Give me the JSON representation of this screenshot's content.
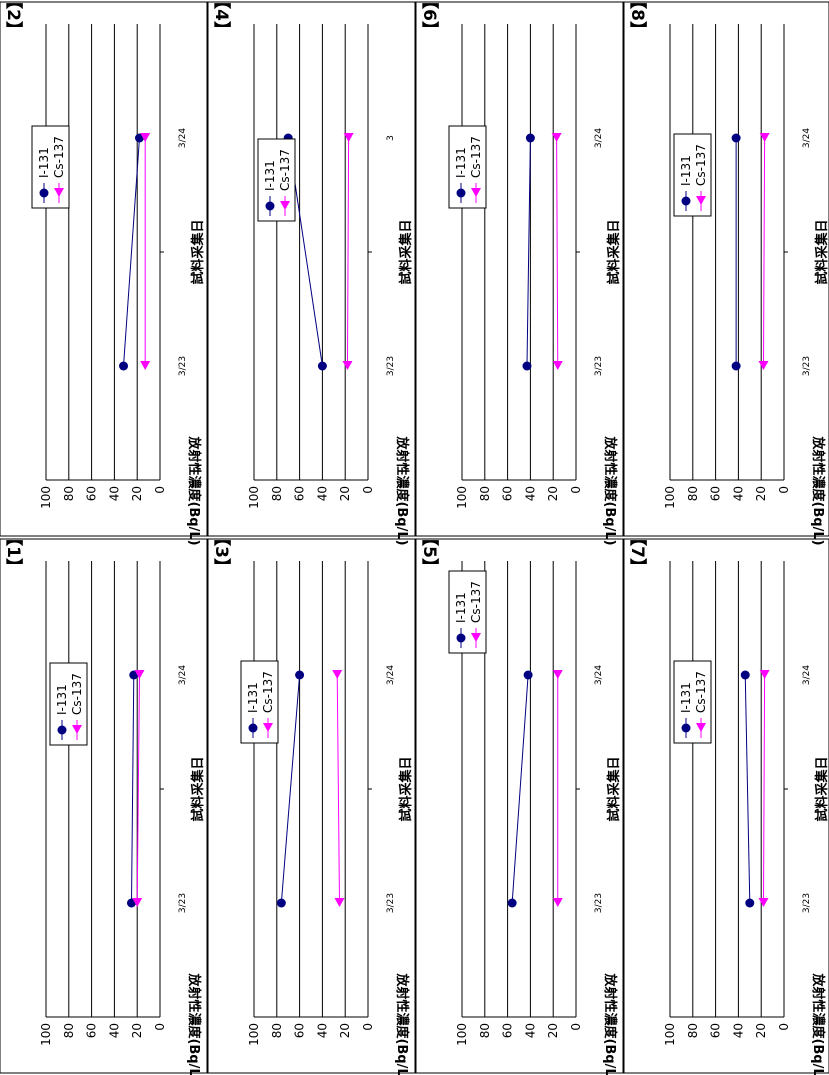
{
  "axis_labels": {
    "ylabel": "放射性濃度(Bq/L)",
    "xlabel": "試料采集日"
  },
  "series_names": [
    "I-131",
    "Cs-137"
  ],
  "colors": {
    "i131": "#000080",
    "cs137": "#ff00ff",
    "grid": "#000000"
  },
  "chart_data": [
    {
      "type": "line",
      "panel": "【1】",
      "categories": [
        "3/23",
        "3/24"
      ],
      "ylabel": "放射性濃度(Bq/L)",
      "xlabel": "試料采集日",
      "ylim": [
        0,
        100
      ],
      "grid": true,
      "legend": "top-right",
      "series": [
        {
          "name": "I-131",
          "values": [
            25,
            23
          ]
        },
        {
          "name": "Cs-137",
          "values": [
            20,
            18
          ]
        }
      ]
    },
    {
      "type": "line",
      "panel": "【2】",
      "categories": [
        "3/23",
        "3/24"
      ],
      "ylabel": "放射性濃度(Bq/L)",
      "xlabel": "試料采集日",
      "ylim": [
        0,
        100
      ],
      "grid": true,
      "legend": "top-right",
      "series": [
        {
          "name": "I-131",
          "values": [
            32,
            18
          ]
        },
        {
          "name": "Cs-137",
          "values": [
            13,
            13
          ]
        }
      ]
    },
    {
      "type": "line",
      "panel": "【3】",
      "categories": [
        "3/23",
        "3/24"
      ],
      "ylabel": "放射性濃度(Bq/L)",
      "xlabel": "試料采集日",
      "ylim": [
        0,
        100
      ],
      "grid": true,
      "legend": "top-right",
      "series": [
        {
          "name": "I-131",
          "values": [
            76,
            60
          ]
        },
        {
          "name": "Cs-137",
          "values": [
            25,
            27
          ]
        }
      ]
    },
    {
      "type": "line",
      "panel": "【4】",
      "categories": [
        "3/23",
        "3"
      ],
      "ylabel": "放射性濃度(Bq/L)",
      "xlabel": "試料采集日",
      "ylim": [
        0,
        100
      ],
      "grid": true,
      "legend": "top-right",
      "series": [
        {
          "name": "I-131",
          "values": [
            40,
            70
          ]
        },
        {
          "name": "Cs-137",
          "values": [
            18,
            17
          ]
        }
      ]
    },
    {
      "type": "line",
      "panel": "【5】",
      "categories": [
        "3/23",
        "3/24"
      ],
      "ylabel": "放射性濃度(Bq/L)",
      "xlabel": "試料采集日",
      "ylim": [
        0,
        100
      ],
      "grid": true,
      "legend": "top-left",
      "series": [
        {
          "name": "I-131",
          "values": [
            56,
            42
          ]
        },
        {
          "name": "Cs-137",
          "values": [
            16,
            16
          ]
        }
      ]
    },
    {
      "type": "line",
      "panel": "【6】",
      "categories": [
        "3/23",
        "3/24"
      ],
      "ylabel": "放射性濃度(Bq/L)",
      "xlabel": "試料采集日",
      "ylim": [
        0,
        100
      ],
      "grid": true,
      "legend": "top-right",
      "series": [
        {
          "name": "I-131",
          "values": [
            43,
            40
          ]
        },
        {
          "name": "Cs-137",
          "values": [
            16,
            17
          ]
        }
      ]
    },
    {
      "type": "line",
      "panel": "【7】",
      "categories": [
        "3/23",
        "3/24"
      ],
      "ylabel": "放射性濃度(Bq/L)",
      "xlabel": "試料采集日",
      "ylim": [
        0,
        100
      ],
      "grid": true,
      "legend": "top-right",
      "series": [
        {
          "name": "I-131",
          "values": [
            30,
            34
          ]
        },
        {
          "name": "Cs-137",
          "values": [
            18,
            17
          ]
        }
      ]
    },
    {
      "type": "line",
      "panel": "【8】",
      "categories": [
        "3/23",
        "3/24"
      ],
      "ylabel": "放射性濃度(Bq/L)",
      "xlabel": "試料采集日",
      "ylim": [
        0,
        100
      ],
      "grid": true,
      "legend": "top-right",
      "series": [
        {
          "name": "I-131",
          "values": [
            42,
            42
          ]
        },
        {
          "name": "Cs-137",
          "values": [
            18,
            17
          ]
        }
      ]
    }
  ]
}
